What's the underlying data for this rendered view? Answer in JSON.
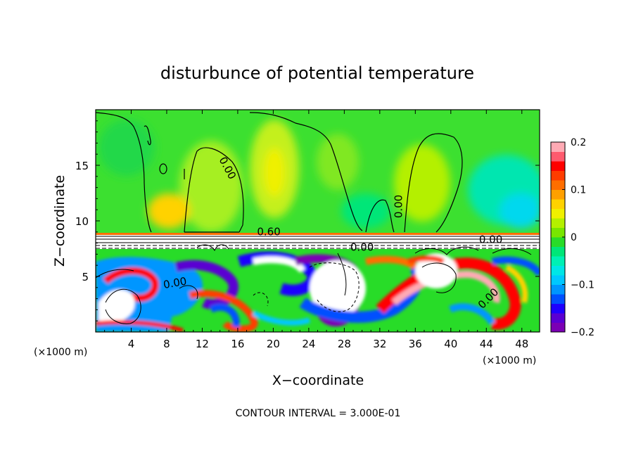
{
  "chart_data": {
    "type": "heatmap",
    "title": "disturbunce of potential temperature",
    "xlabel": "X−coordinate",
    "ylabel": "Z−coordinate",
    "x_unit_left": "(×1000 m)",
    "x_unit_right": "(×1000 m)",
    "xlim": [
      0,
      50
    ],
    "ylim": [
      0,
      20
    ],
    "x_ticks": [
      4,
      8,
      12,
      16,
      20,
      24,
      28,
      32,
      36,
      40,
      44,
      48
    ],
    "y_ticks": [
      5,
      10,
      15
    ],
    "colorbar": {
      "range": [
        -0.2,
        0.2
      ],
      "tick_labels": [
        "0.2",
        "0.1",
        "0",
        "−0.1",
        "−0.2"
      ],
      "tick_values": [
        0.2,
        0.1,
        0,
        -0.1,
        -0.2
      ],
      "colors": [
        "#7b00b4",
        "#5a00d2",
        "#1e00ff",
        "#0050ff",
        "#0096ff",
        "#00c8ff",
        "#00e6e6",
        "#00f0b4",
        "#00e678",
        "#28dc28",
        "#78e600",
        "#b4f000",
        "#f0f000",
        "#ffd200",
        "#ffa000",
        "#ff6e00",
        "#ff3c00",
        "#ff0000",
        "#ff5a6e",
        "#ffaab4"
      ]
    },
    "contour_labels": [
      {
        "text": "0.00",
        "x": 14.5,
        "z": 14.6,
        "rotate": 62
      },
      {
        "text": "0.00",
        "x": 34.5,
        "z": 11.3,
        "rotate": -90
      },
      {
        "text": "0.00",
        "x": 9.0,
        "z": 4.1,
        "rotate": -10
      },
      {
        "text": "0.00",
        "x": 44.5,
        "z": 8.0,
        "rotate": 0
      },
      {
        "text": "0.00",
        "x": 44.5,
        "z": 2.8,
        "rotate": -45
      },
      {
        "text": "0.00",
        "x": 30.0,
        "z": 7.3,
        "rotate": 0
      },
      {
        "text": "0.60",
        "x": 19.5,
        "z": 8.7,
        "rotate": 0
      }
    ],
    "footer": "CONTOUR INTERVAL = 3.000E-01"
  }
}
